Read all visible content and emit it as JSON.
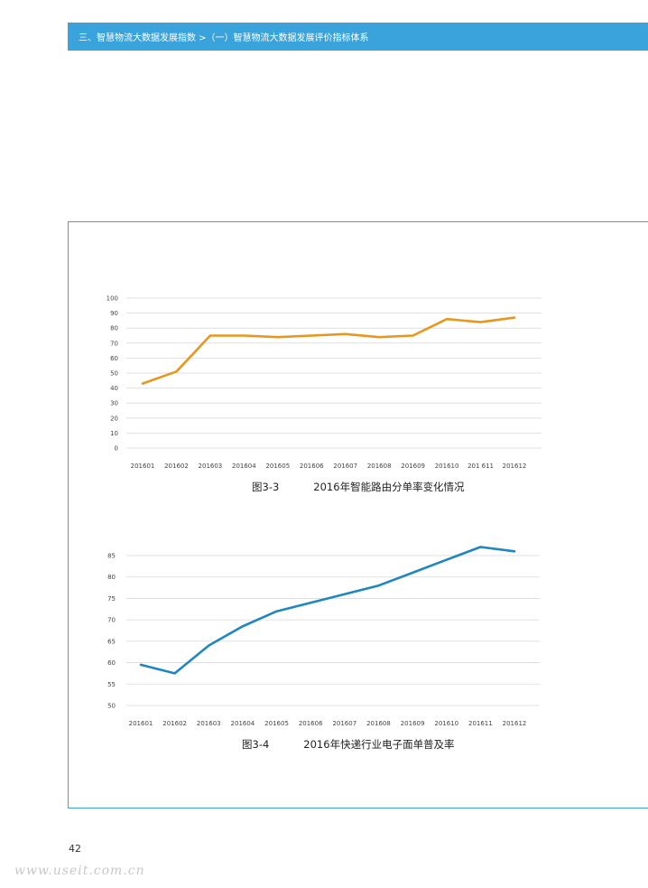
{
  "header": {
    "breadcrumb": "三、智慧物流大数据发展指数 >（一）智慧物流大数据发展评价指标体系",
    "color": "#3aa3dc"
  },
  "figures": [
    {
      "label": "图3-3",
      "title": "2016年智能路由分单率变化情况"
    },
    {
      "label": "图3-4",
      "title": "2016年快递行业电子面单普及率"
    }
  ],
  "page_number": "42",
  "watermark": "www.useit.com.cn",
  "chart_data": [
    {
      "type": "line",
      "title": "",
      "xlabel": "",
      "ylabel": "",
      "categories": [
        "201601",
        "201602",
        "201603",
        "201604",
        "201605",
        "201606",
        "201607",
        "201608",
        "201609",
        "201610",
        "201 611",
        "201612"
      ],
      "series": [
        {
          "values": [
            43,
            51,
            75,
            75,
            74,
            75,
            76,
            74,
            75,
            86,
            84,
            87
          ],
          "color": "#e8971e"
        }
      ],
      "ylim": [
        0,
        100
      ],
      "yticks": [
        0,
        10,
        20,
        30,
        40,
        50,
        60,
        70,
        80,
        90,
        100
      ],
      "grid": true,
      "legend": "none"
    },
    {
      "type": "line",
      "title": "",
      "xlabel": "",
      "ylabel": "",
      "categories": [
        "201601",
        "201602",
        "201603",
        "201604",
        "201605",
        "201606",
        "201607",
        "201608",
        "201609",
        "201610",
        "201611",
        "201612"
      ],
      "series": [
        {
          "values": [
            59.5,
            57.5,
            64,
            68.5,
            72,
            74,
            76,
            78,
            81,
            84,
            87,
            86
          ],
          "color": "#1f86c0"
        }
      ],
      "ylim": [
        50,
        85
      ],
      "yticks": [
        50,
        55,
        60,
        65,
        70,
        75,
        80,
        85
      ],
      "grid": true,
      "legend": "none"
    }
  ]
}
